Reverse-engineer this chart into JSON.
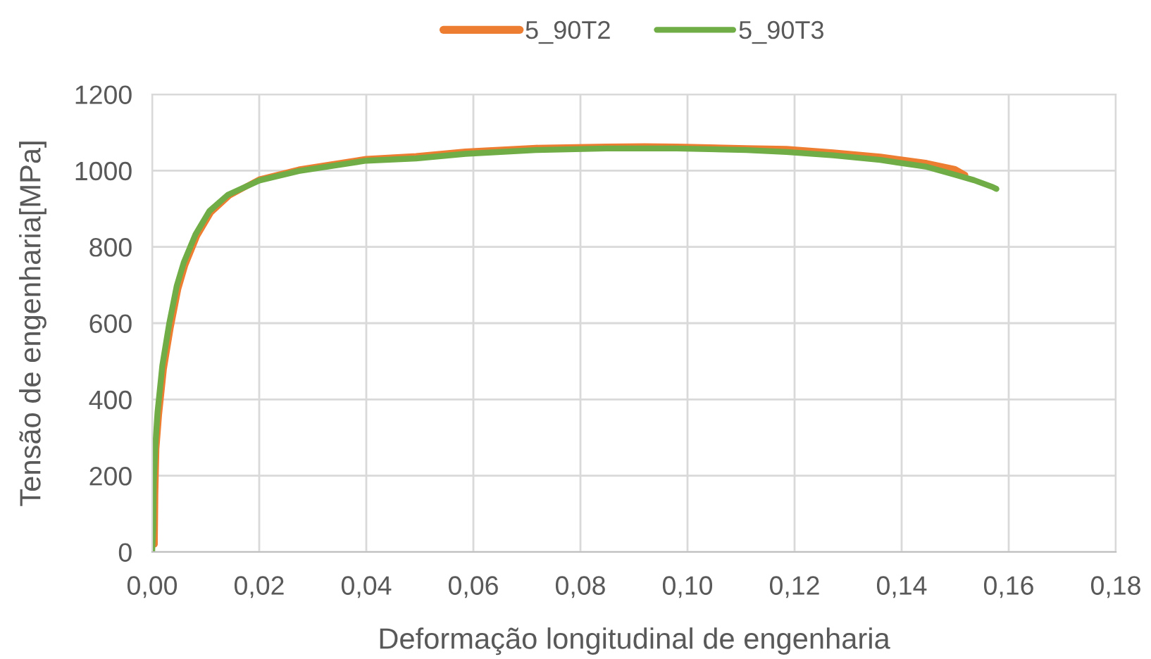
{
  "chart_data": {
    "type": "line",
    "xlabel": "Deformação longitudinal de engenharia",
    "ylabel": "Tensão de engenharia[MPa]",
    "series": [
      {
        "name": "5_90T2",
        "color": "#ed7d31",
        "x": [
          0.0005,
          0.0006,
          0.0008,
          0.0013,
          0.0022,
          0.0035,
          0.0049,
          0.0062,
          0.0084,
          0.011,
          0.0145,
          0.02,
          0.0274,
          0.04,
          0.0493,
          0.0585,
          0.0717,
          0.0848,
          0.092,
          0.098,
          0.111,
          0.1185,
          0.1272,
          0.136,
          0.1447,
          0.15,
          0.1519
        ],
        "values": [
          20,
          150,
          270,
          360,
          480,
          590,
          690,
          752,
          828,
          890,
          935,
          977,
          1003,
          1031,
          1038,
          1050,
          1060,
          1063,
          1064,
          1063,
          1059,
          1057,
          1048,
          1037,
          1020,
          1004,
          989
        ]
      },
      {
        "name": "5_90T3",
        "color": "#70ad47",
        "x": [
          0,
          0.0002,
          0.0003,
          0.0006,
          0.001,
          0.0019,
          0.0032,
          0.0046,
          0.0059,
          0.0081,
          0.0107,
          0.0142,
          0.02,
          0.0274,
          0.04,
          0.0493,
          0.0585,
          0.0717,
          0.0848,
          0.098,
          0.111,
          0.1185,
          0.1272,
          0.136,
          0.1447,
          0.15,
          0.1535,
          0.157,
          0.1577
        ],
        "values": [
          0,
          60,
          181,
          280,
          366,
          489,
          600,
          698,
          759,
          833,
          894,
          937,
          974,
          999,
          1026,
          1032,
          1044,
          1054,
          1058,
          1058,
          1054,
          1049,
          1040,
          1028,
          1010,
          989,
          975,
          957,
          952
        ]
      }
    ],
    "xlim": [
      0,
      0.18
    ],
    "ylim": [
      0,
      1200
    ],
    "xticks": [
      {
        "value": 0,
        "label": "0,00"
      },
      {
        "value": 0.02,
        "label": "0,02"
      },
      {
        "value": 0.04,
        "label": "0,04"
      },
      {
        "value": 0.06,
        "label": "0,06"
      },
      {
        "value": 0.08,
        "label": "0,08"
      },
      {
        "value": 0.1,
        "label": "0,10"
      },
      {
        "value": 0.12,
        "label": "0,12"
      },
      {
        "value": 0.14,
        "label": "0,14"
      },
      {
        "value": 0.16,
        "label": "0,16"
      },
      {
        "value": 0.18,
        "label": "0,18"
      }
    ],
    "yticks": [
      0,
      200,
      400,
      600,
      800,
      1000,
      1200
    ],
    "grid": true,
    "legend": "top",
    "line_style": "solid"
  }
}
